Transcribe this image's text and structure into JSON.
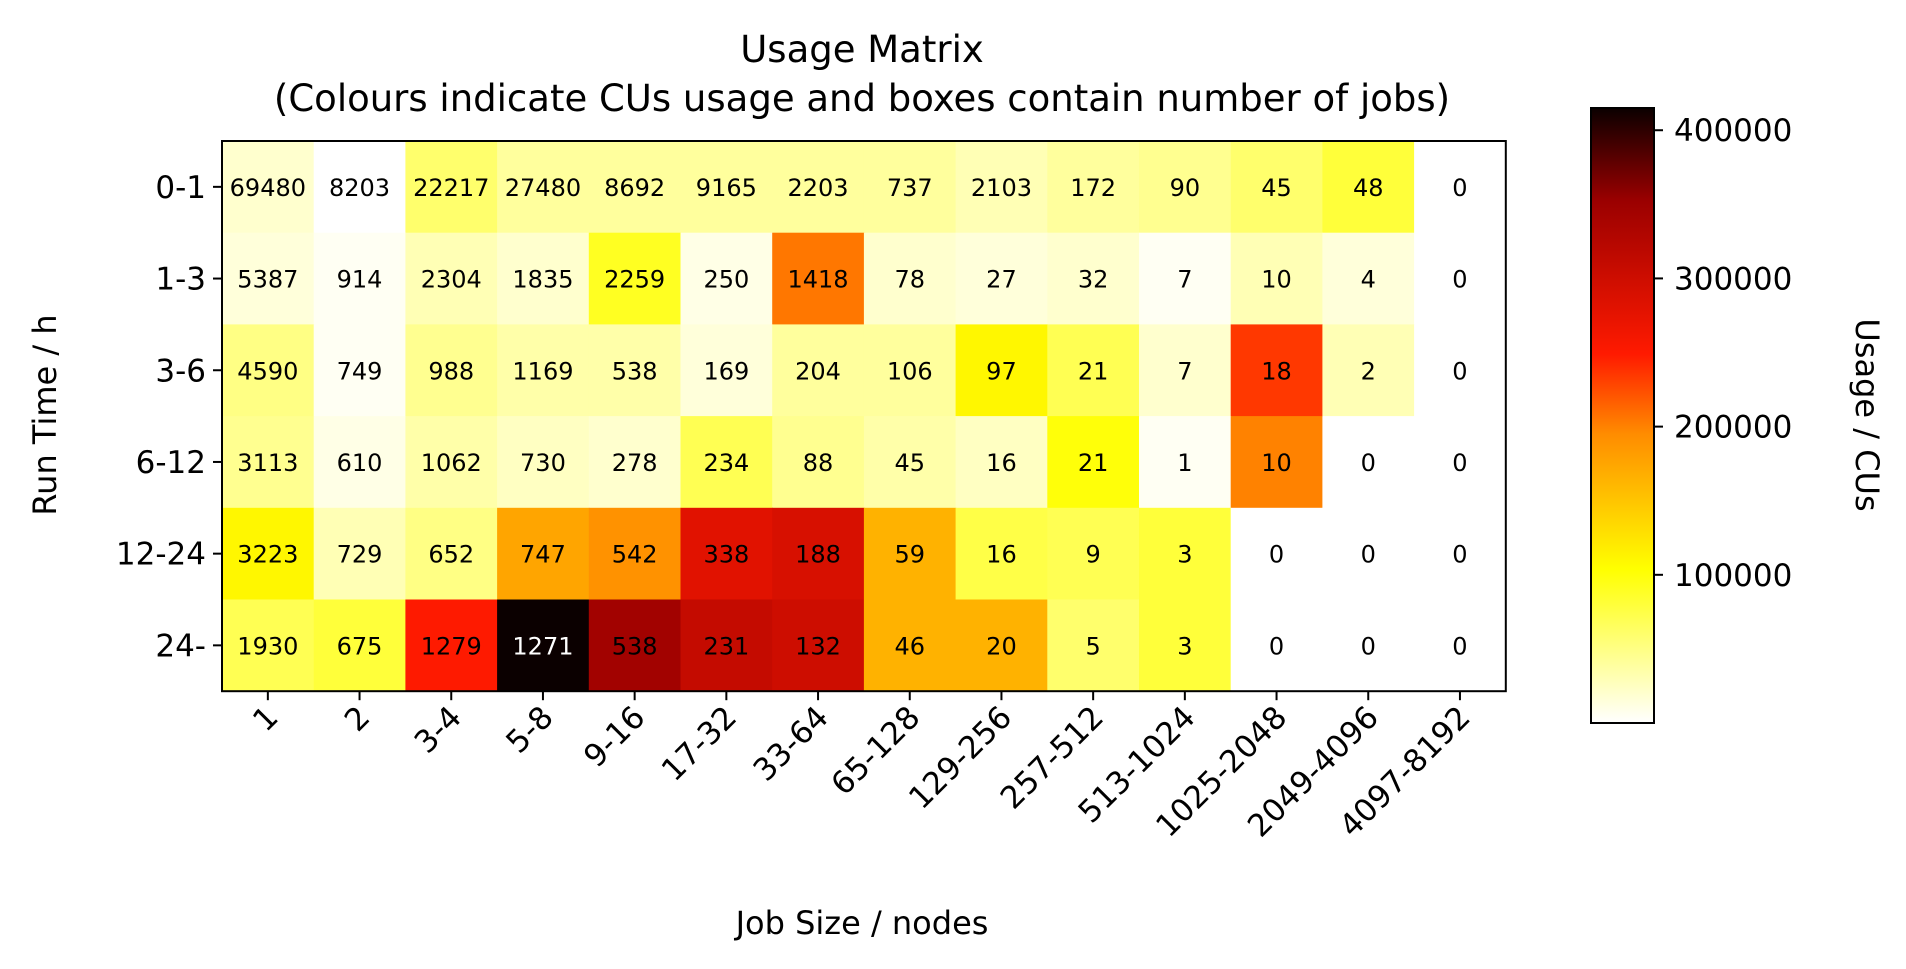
{
  "chart_data": {
    "type": "heatmap",
    "title": "Usage Matrix",
    "subtitle": "(Colours indicate CUs usage and boxes contain number of jobs)",
    "xlabel": "Job Size / nodes",
    "ylabel": "Run Time / h",
    "colorbar_label": "Usage / CUs",
    "colormap": "hot_r",
    "colorbar_range": [
      0,
      415000
    ],
    "colorbar_ticks": [
      100000,
      200000,
      300000,
      400000
    ],
    "colorbar_tick_labels": [
      "100000",
      "200000",
      "300000",
      "400000"
    ],
    "x_categories": [
      "1",
      "2",
      "3-4",
      "5-8",
      "9-16",
      "17-32",
      "33-64",
      "65-128",
      "129-256",
      "257-512",
      "513-1024",
      "1025-2048",
      "2049-4096",
      "4097-8192"
    ],
    "y_categories": [
      "0-1",
      "1-3",
      "3-6",
      "6-12",
      "12-24",
      "24-"
    ],
    "job_counts": [
      [
        "69480",
        "8203",
        "22217",
        "27480",
        "8692",
        "9165",
        "2203",
        "737",
        "2103",
        "172",
        "90",
        "45",
        "48",
        "0"
      ],
      [
        "5387",
        "914",
        "2304",
        "1835",
        "2259",
        "250",
        "1418",
        "78",
        "27",
        "32",
        "7",
        "10",
        "4",
        "0"
      ],
      [
        "4590",
        "749",
        "988",
        "1169",
        "538",
        "169",
        "204",
        "106",
        "97",
        "21",
        "7",
        "18",
        "2",
        "0"
      ],
      [
        "3113",
        "610",
        "1062",
        "730",
        "278",
        "234",
        "88",
        "45",
        "16",
        "21",
        "1",
        "10",
        "0",
        "0"
      ],
      [
        "3223",
        "729",
        "652",
        "747",
        "542",
        "338",
        "188",
        "59",
        "16",
        "9",
        "3",
        "0",
        "0",
        "0"
      ],
      [
        "1930",
        "675",
        "1279",
        "1271",
        "538",
        "231",
        "132",
        "46",
        "20",
        "5",
        "3",
        "0",
        "0",
        "0"
      ]
    ],
    "usage_values": [
      [
        20000,
        0,
        60000,
        40000,
        40000,
        40000,
        40000,
        40000,
        30000,
        40000,
        45000,
        60000,
        80000,
        0
      ],
      [
        15000,
        5000,
        30000,
        20000,
        90000,
        10000,
        205000,
        20000,
        15000,
        20000,
        5000,
        30000,
        15000,
        0
      ],
      [
        50000,
        5000,
        45000,
        35000,
        35000,
        15000,
        40000,
        40000,
        110000,
        70000,
        20000,
        235000,
        30000,
        0
      ],
      [
        45000,
        10000,
        35000,
        25000,
        20000,
        70000,
        45000,
        35000,
        25000,
        100000,
        5000,
        200000,
        0,
        0
      ],
      [
        110000,
        30000,
        50000,
        175000,
        190000,
        280000,
        290000,
        165000,
        75000,
        70000,
        80000,
        0,
        0,
        0
      ],
      [
        70000,
        80000,
        250000,
        415000,
        345000,
        310000,
        300000,
        165000,
        165000,
        60000,
        80000,
        0,
        0,
        0
      ]
    ]
  }
}
